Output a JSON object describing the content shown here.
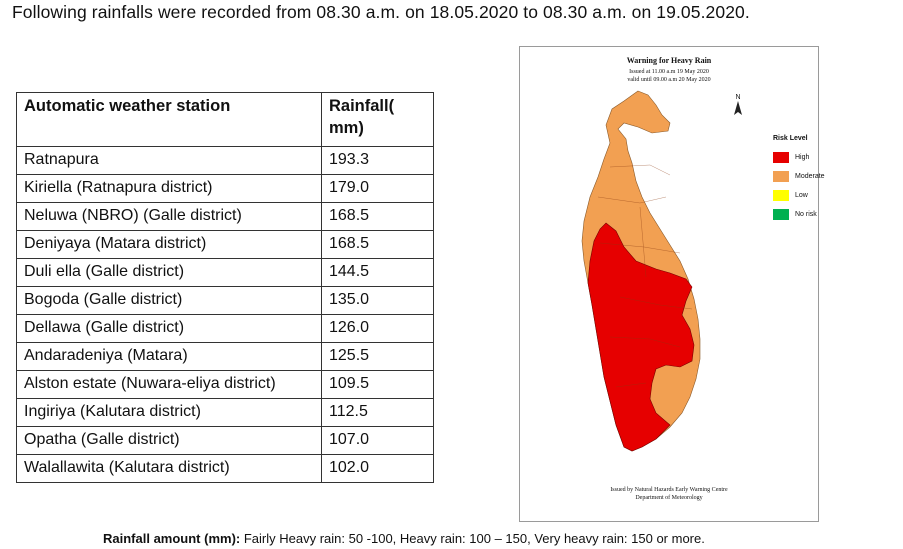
{
  "heading": "Following rainfalls were recorded from 08.30 a.m. on 18.05.2020 to 08.30 a.m. on 19.05.2020.",
  "table": {
    "headers": [
      "Automatic weather station",
      "Rainfall( mm)"
    ],
    "rows": [
      [
        "Ratnapura",
        "193.3"
      ],
      [
        "Kiriella (Ratnapura district)",
        "179.0"
      ],
      [
        "Neluwa (NBRO) (Galle district)",
        "168.5"
      ],
      [
        "Deniyaya (Matara district)",
        "168.5"
      ],
      [
        "Duli ella (Galle district)",
        "144.5"
      ],
      [
        "Bogoda (Galle district)",
        "135.0"
      ],
      [
        "Dellawa (Galle district)",
        "126.0"
      ],
      [
        "Andaradeniya (Matara)",
        "125.5"
      ],
      [
        "Alston estate (Nuwara-eliya district)",
        "109.5"
      ],
      [
        "Ingiriya (Kalutara district)",
        "112.5"
      ],
      [
        "Opatha (Galle district)",
        "107.0"
      ],
      [
        "Walallawita (Kalutara district)",
        "102.0"
      ]
    ]
  },
  "map": {
    "title": "Warning  for Heavy Rain",
    "issued": "Issued at 11.00 a.m 19 May 2020",
    "valid": "valid until 09.00 a.m 20 May 2020",
    "north_label": "N",
    "legend_title": "Risk Level",
    "legend": [
      {
        "label": "High",
        "color": "#e60000"
      },
      {
        "label": "Moderate",
        "color": "#f2a052"
      },
      {
        "label": "Low",
        "color": "#ffff00"
      },
      {
        "label": "No risk",
        "color": "#00b050"
      }
    ],
    "footer_line1": "Issued by Natural Hazards Early Warning Centre",
    "footer_line2": "Department of Meteorology"
  },
  "footer_note": {
    "bold": "Rainfall amount (mm):",
    "text": " Fairly Heavy rain: 50 -100, Heavy rain: 100 – 150, Very heavy rain: 150 or more."
  }
}
